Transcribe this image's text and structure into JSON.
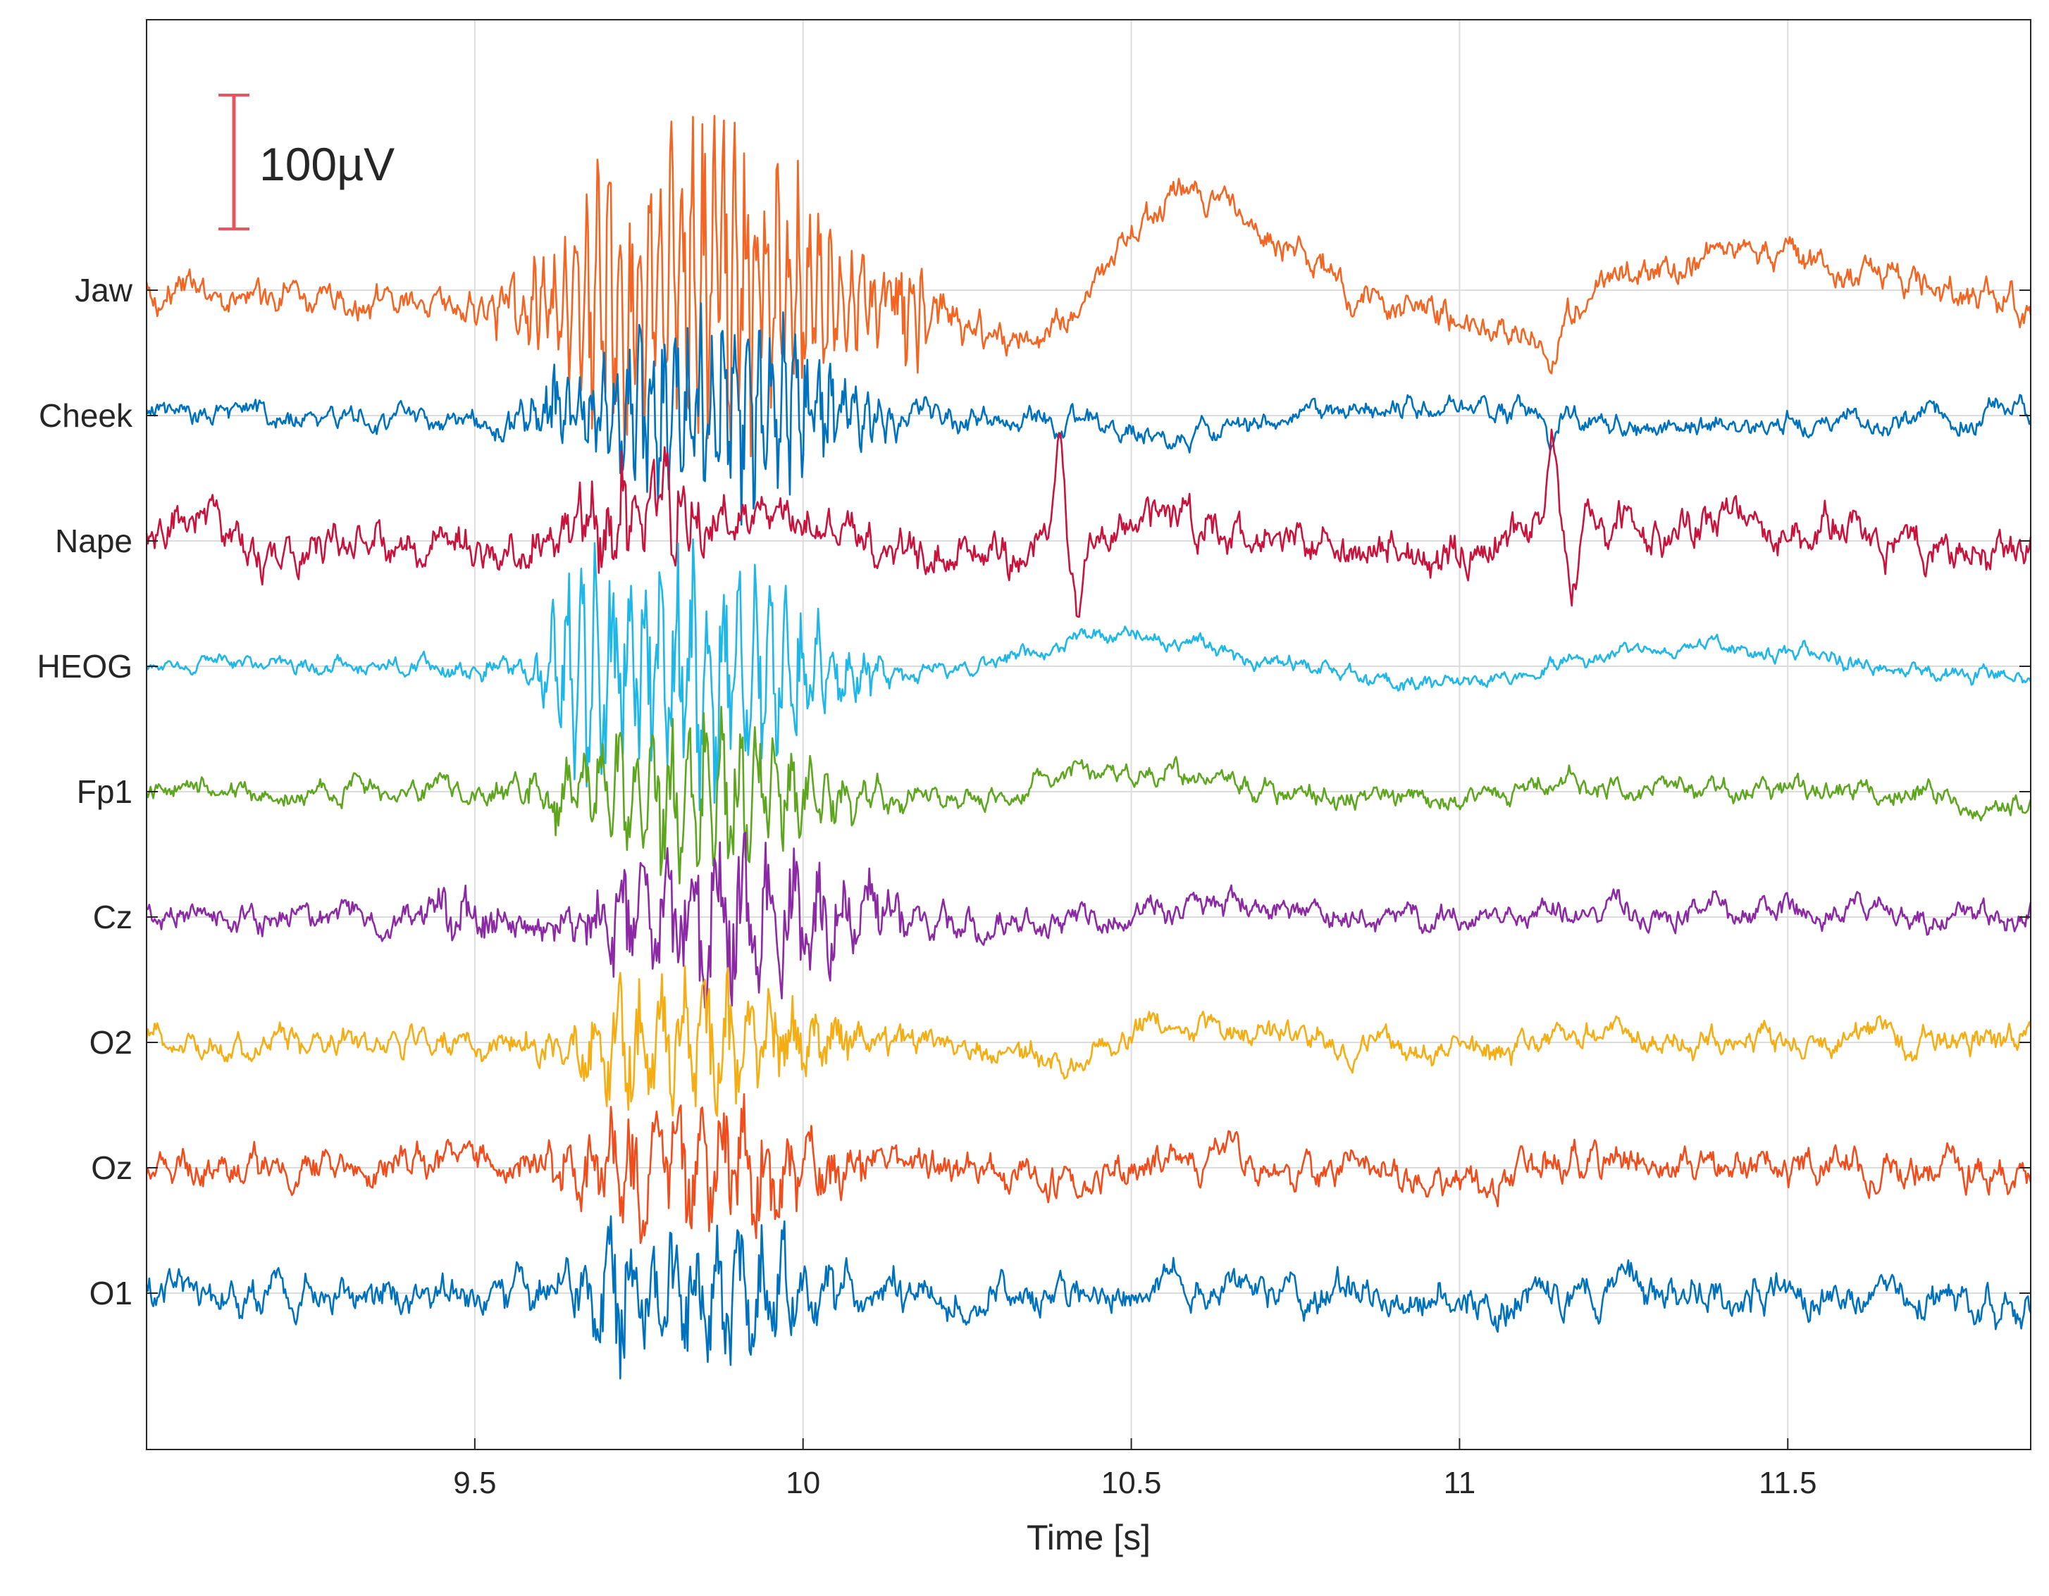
{
  "chart_data": {
    "type": "line",
    "title": "",
    "xlabel": "Time [s]",
    "ylabel": "",
    "xlim": [
      9.0,
      11.87
    ],
    "x_ticks": [
      9.5,
      10,
      10.5,
      11,
      11.5
    ],
    "x_tick_labels": [
      "9.5",
      "10",
      "10.5",
      "11",
      "11.5"
    ],
    "grid": true,
    "scale_bar": {
      "label": "100µV",
      "value_uV": 100,
      "color": "#e8555c"
    },
    "channel_order_top_to_bottom": [
      "Jaw",
      "Cheek",
      "Nape",
      "HEOG",
      "Fp1",
      "Cz",
      "O2",
      "Oz",
      "O1"
    ],
    "series": [
      {
        "name": "Jaw",
        "color": "#f26522",
        "noise_uV": 7,
        "hf_uV": 3,
        "trend": [
          [
            9.0,
            0
          ],
          [
            9.4,
            -10
          ],
          [
            9.58,
            -12
          ],
          [
            9.85,
            8
          ],
          [
            10.2,
            -15
          ],
          [
            10.32,
            -40
          ],
          [
            10.4,
            -20
          ],
          [
            10.5,
            45
          ],
          [
            10.6,
            75
          ],
          [
            10.75,
            40
          ],
          [
            10.85,
            -10
          ],
          [
            11.0,
            -25
          ],
          [
            11.1,
            -30
          ],
          [
            11.15,
            -20
          ],
          [
            11.25,
            15
          ],
          [
            11.45,
            28
          ],
          [
            11.6,
            15
          ],
          [
            11.8,
            -5
          ],
          [
            11.87,
            -15
          ]
        ],
        "events": [
          {
            "c": 9.86,
            "w": 0.22,
            "a": 140,
            "f": 62
          },
          {
            "c": 9.72,
            "w": 0.06,
            "a": 120,
            "f": 55
          },
          {
            "c": 10.16,
            "w": 0.035,
            "a": 55,
            "f": 60
          },
          {
            "c": 11.14,
            "w": 0.014,
            "a": 25,
            "shape": "dip"
          }
        ]
      },
      {
        "name": "Cheek",
        "color": "#0072bd",
        "noise_uV": 5,
        "hf_uV": 2,
        "trend": [
          [
            9.0,
            0
          ],
          [
            9.55,
            -5
          ],
          [
            9.9,
            5
          ],
          [
            10.25,
            -3
          ],
          [
            10.38,
            5
          ],
          [
            10.5,
            -15
          ],
          [
            10.6,
            -18
          ],
          [
            10.75,
            0
          ],
          [
            10.95,
            10
          ],
          [
            11.1,
            2
          ],
          [
            11.25,
            -10
          ],
          [
            11.5,
            -5
          ],
          [
            11.87,
            0
          ]
        ],
        "events": [
          {
            "c": 9.62,
            "w": 0.02,
            "a": 40,
            "f": 12
          },
          {
            "c": 9.86,
            "w": 0.2,
            "a": 95,
            "f": 55
          },
          {
            "c": 10.39,
            "w": 0.01,
            "a": 25,
            "shape": "dip"
          },
          {
            "c": 11.14,
            "w": 0.01,
            "a": 25,
            "shape": "dip"
          }
        ]
      },
      {
        "name": "Nape",
        "color": "#c8143c",
        "noise_uV": 9,
        "hf_uV": 4,
        "trend": [
          [
            9.0,
            10
          ],
          [
            9.1,
            10
          ],
          [
            9.2,
            -10
          ],
          [
            9.35,
            0
          ],
          [
            9.45,
            -10
          ],
          [
            9.55,
            -5
          ],
          [
            9.65,
            5
          ],
          [
            9.8,
            25
          ],
          [
            9.95,
            15
          ],
          [
            10.15,
            -10
          ],
          [
            10.3,
            -20
          ],
          [
            10.5,
            20
          ],
          [
            10.6,
            10
          ],
          [
            10.7,
            0
          ],
          [
            10.85,
            0
          ],
          [
            11.0,
            -10
          ],
          [
            11.2,
            15
          ],
          [
            11.35,
            15
          ],
          [
            11.5,
            10
          ],
          [
            11.7,
            -5
          ],
          [
            11.87,
            -10
          ]
        ],
        "events": [
          {
            "c": 9.75,
            "w": 0.1,
            "a": 55,
            "f": 45
          },
          {
            "c": 10.39,
            "w": 0.009,
            "a": 70,
            "shape": "spike"
          },
          {
            "c": 10.42,
            "w": 0.014,
            "a": 55,
            "shape": "dip"
          },
          {
            "c": 11.14,
            "w": 0.009,
            "a": 70,
            "shape": "spike"
          },
          {
            "c": 11.17,
            "w": 0.013,
            "a": 55,
            "shape": "dip"
          }
        ]
      },
      {
        "name": "HEOG",
        "color": "#1fb6e8",
        "noise_uV": 3.5,
        "hf_uV": 1.5,
        "trend": [
          [
            9.0,
            0
          ],
          [
            9.6,
            0
          ],
          [
            10.2,
            -5
          ],
          [
            10.35,
            10
          ],
          [
            10.45,
            25
          ],
          [
            10.55,
            20
          ],
          [
            10.7,
            5
          ],
          [
            10.9,
            -12
          ],
          [
            11.0,
            -12
          ],
          [
            11.2,
            5
          ],
          [
            11.35,
            15
          ],
          [
            11.5,
            10
          ],
          [
            11.7,
            -3
          ],
          [
            11.87,
            -8
          ]
        ],
        "events": [
          {
            "c": 9.6,
            "w": 0.015,
            "a": 30,
            "f": 10
          },
          {
            "c": 9.84,
            "w": 0.19,
            "a": 110,
            "f": 42
          },
          {
            "c": 9.67,
            "w": 0.05,
            "a": 90,
            "f": 48
          }
        ]
      },
      {
        "name": "Fp1",
        "color": "#5ea61f",
        "noise_uV": 5,
        "hf_uV": 2,
        "trend": [
          [
            9.0,
            0
          ],
          [
            9.6,
            0
          ],
          [
            10.3,
            -5
          ],
          [
            10.38,
            10
          ],
          [
            10.55,
            15
          ],
          [
            10.7,
            0
          ],
          [
            10.95,
            -8
          ],
          [
            11.0,
            -5
          ],
          [
            11.2,
            5
          ],
          [
            11.5,
            3
          ],
          [
            11.87,
            -8
          ]
        ],
        "events": [
          {
            "c": 9.84,
            "w": 0.19,
            "a": 75,
            "f": 38
          },
          {
            "c": 9.62,
            "w": 0.02,
            "a": 35,
            "f": 14
          }
        ]
      },
      {
        "name": "Cz",
        "color": "#8b2aa4",
        "noise_uV": 6,
        "hf_uV": 2.5,
        "trend": [
          [
            9.0,
            0
          ],
          [
            9.4,
            0
          ],
          [
            10.3,
            -5
          ],
          [
            10.6,
            5
          ],
          [
            10.9,
            0
          ],
          [
            11.2,
            5
          ],
          [
            11.5,
            5
          ],
          [
            11.87,
            0
          ]
        ],
        "events": [
          {
            "c": 9.9,
            "w": 0.2,
            "a": 78,
            "f": 26
          },
          {
            "c": 9.48,
            "w": 0.06,
            "a": 28,
            "f": 20
          },
          {
            "c": 9.72,
            "w": 0.05,
            "a": 55,
            "f": 30
          }
        ]
      },
      {
        "name": "O2",
        "color": "#f4ae14",
        "noise_uV": 6,
        "hf_uV": 2.5,
        "trend": [
          [
            9.0,
            0
          ],
          [
            10.2,
            0
          ],
          [
            10.4,
            -10
          ],
          [
            10.55,
            10
          ],
          [
            10.8,
            0
          ],
          [
            11.0,
            -10
          ],
          [
            11.2,
            5
          ],
          [
            11.5,
            2
          ],
          [
            11.87,
            0
          ]
        ],
        "events": [
          {
            "c": 9.85,
            "w": 0.2,
            "a": 60,
            "f": 30
          },
          {
            "c": 9.72,
            "w": 0.04,
            "a": 45,
            "f": 25
          }
        ]
      },
      {
        "name": "Oz",
        "color": "#f04c1c",
        "noise_uV": 8,
        "hf_uV": 3,
        "trend": [
          [
            9.0,
            0
          ],
          [
            10.2,
            0
          ],
          [
            10.4,
            -10
          ],
          [
            10.6,
            8
          ],
          [
            10.8,
            0
          ],
          [
            11.0,
            -10
          ],
          [
            11.2,
            5
          ],
          [
            11.5,
            0
          ],
          [
            11.87,
            -5
          ]
        ],
        "events": [
          {
            "c": 9.85,
            "w": 0.2,
            "a": 58,
            "f": 30
          },
          {
            "c": 9.74,
            "w": 0.04,
            "a": 50,
            "f": 25
          }
        ]
      },
      {
        "name": "O1",
        "color": "#0072bd",
        "noise_uV": 8,
        "hf_uV": 3.5,
        "trend": [
          [
            9.0,
            0
          ],
          [
            10.2,
            0
          ],
          [
            10.4,
            -8
          ],
          [
            10.6,
            5
          ],
          [
            11.0,
            -5
          ],
          [
            11.5,
            0
          ],
          [
            11.87,
            -10
          ]
        ],
        "events": [
          {
            "c": 9.85,
            "w": 0.2,
            "a": 60,
            "f": 30
          },
          {
            "c": 9.72,
            "w": 0.04,
            "a": 65,
            "f": 25
          }
        ]
      }
    ]
  }
}
